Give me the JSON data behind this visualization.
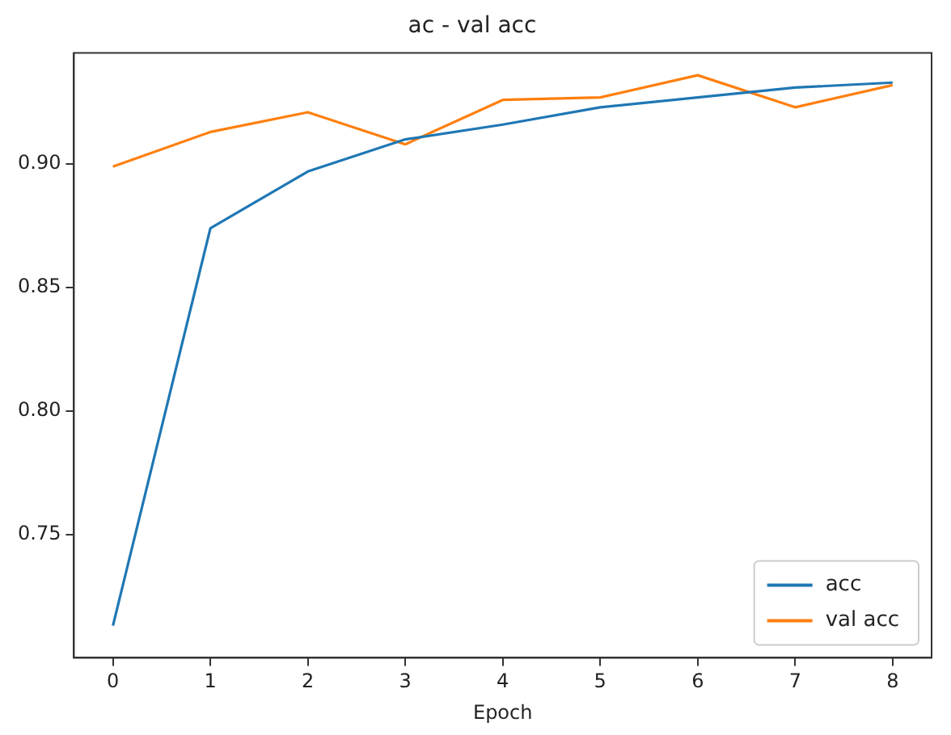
{
  "chart_data": {
    "type": "line",
    "title": "ac - val acc",
    "xlabel": "Epoch",
    "x": [
      0,
      1,
      2,
      3,
      4,
      5,
      6,
      7,
      8
    ],
    "xlim": [
      -0.4,
      8.4
    ],
    "xticks": [
      0,
      1,
      2,
      3,
      4,
      5,
      6,
      7,
      8
    ],
    "ylim": [
      0.7,
      0.945
    ],
    "yticks": [
      0.75,
      {
        "value": 0.8,
        "label": "0.80"
      },
      0.85,
      {
        "value": 0.9,
        "label": "0.90"
      }
    ],
    "grid": false,
    "legend": "bottom right",
    "series": [
      {
        "name": "acc",
        "color": "#1f77b4",
        "values": [
          0.713,
          0.874,
          0.897,
          0.91,
          0.916,
          0.923,
          0.927,
          0.931,
          0.933
        ]
      },
      {
        "name": "val acc",
        "color": "#ff7f0e",
        "values": [
          0.899,
          0.913,
          0.921,
          0.908,
          0.926,
          0.927,
          0.936,
          0.923,
          0.932
        ]
      }
    ]
  }
}
